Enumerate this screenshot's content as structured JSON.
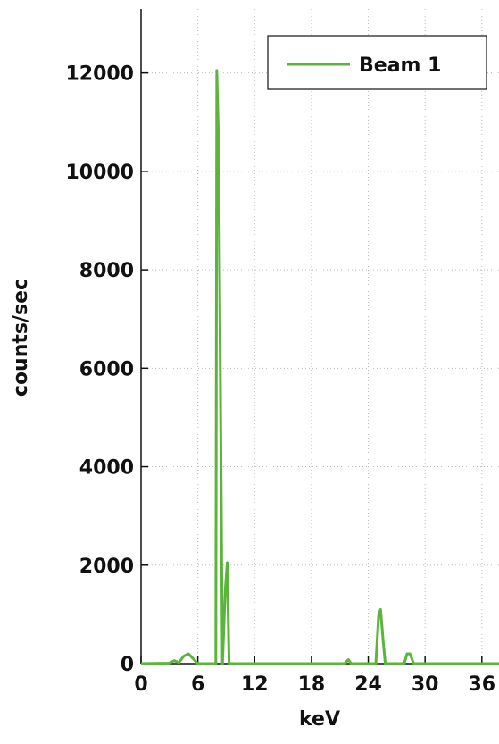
{
  "chart_data": {
    "type": "line",
    "x_label": "keV",
    "y_label": "counts/sec",
    "xlim": [
      0,
      38
    ],
    "ylim": [
      0,
      13300
    ],
    "xticks": [
      0,
      6,
      12,
      18,
      24,
      30,
      36
    ],
    "yticks": [
      0,
      2000,
      4000,
      6000,
      8000,
      10000,
      12000
    ],
    "grid": true,
    "legend": "top-right",
    "x": [
      0,
      3,
      3.5,
      4,
      4.5,
      5,
      5.5,
      6,
      7.9,
      8.0,
      8.2,
      8.6,
      8.9,
      9.1,
      9.3,
      21.5,
      21.9,
      22.2,
      24.8,
      25.1,
      25.3,
      25.6,
      25.8,
      27.8,
      28.1,
      28.4,
      28.8,
      38
    ],
    "series": [
      {
        "name": "Beam 1",
        "color": "#5ab53a",
        "values": [
          0,
          10,
          60,
          20,
          150,
          200,
          100,
          0,
          0,
          12050,
          10500,
          0,
          1500,
          2050,
          0,
          0,
          80,
          0,
          0,
          1000,
          1100,
          400,
          0,
          0,
          200,
          200,
          0,
          0
        ]
      }
    ]
  }
}
